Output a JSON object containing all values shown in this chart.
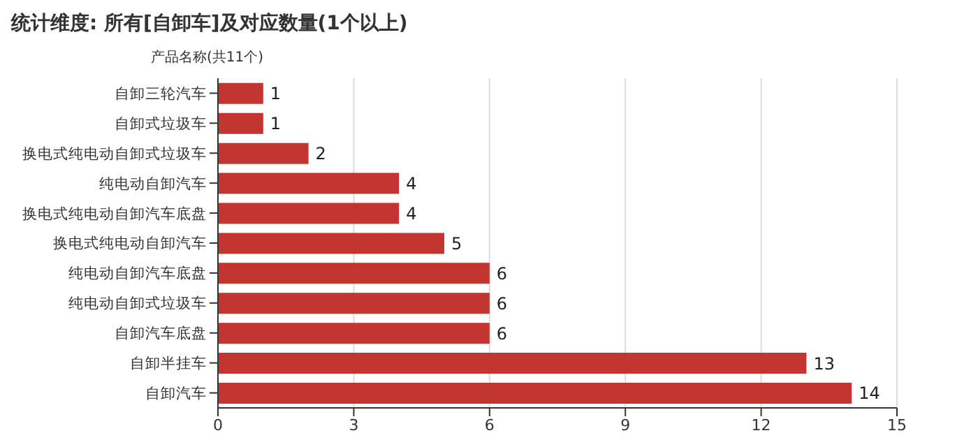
{
  "chart_data": {
    "type": "bar",
    "orientation": "horizontal",
    "title": "统计维度: 所有[自卸车]及对应数量(1个以上)",
    "ylabel": "产品名称(共11个)",
    "categories": [
      "自卸三轮汽车",
      "自卸式垃圾车",
      "换电式纯电动自卸式垃圾车",
      "纯电动自卸汽车",
      "换电式纯电动自卸汽车底盘",
      "换电式纯电动自卸汽车",
      "纯电动自卸汽车底盘",
      "纯电动自卸式垃圾车",
      "自卸汽车底盘",
      "自卸半挂车",
      "自卸汽车"
    ],
    "values": [
      1,
      1,
      2,
      4,
      4,
      5,
      6,
      6,
      6,
      13,
      14
    ],
    "color": "#c23531",
    "xlim": [
      0,
      15
    ],
    "xticks": [
      0,
      3,
      6,
      9,
      12,
      15
    ],
    "grid": "x",
    "data_labels": true
  }
}
